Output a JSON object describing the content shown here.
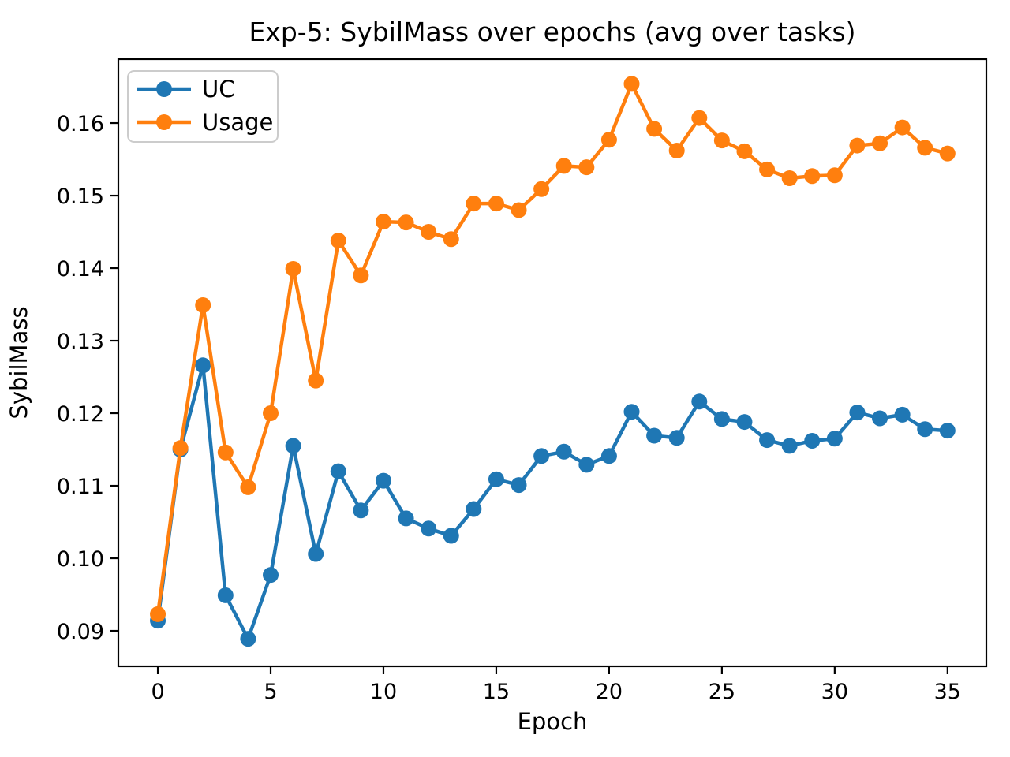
{
  "chart_data": {
    "type": "line",
    "title": "Exp-5: SybilMass over epochs (avg over tasks)",
    "xlabel": "Epoch",
    "ylabel": "SybilMass",
    "x": [
      0,
      1,
      2,
      3,
      4,
      5,
      6,
      7,
      8,
      9,
      10,
      11,
      12,
      13,
      14,
      15,
      16,
      17,
      18,
      19,
      20,
      21,
      22,
      23,
      24,
      25,
      26,
      27,
      28,
      29,
      30,
      31,
      32,
      33,
      34,
      35
    ],
    "series": [
      {
        "name": "UC",
        "color": "#1f77b4",
        "values": [
          0.0914,
          0.115,
          0.1266,
          0.0949,
          0.0889,
          0.0977,
          0.1155,
          0.1006,
          0.112,
          0.1066,
          0.1107,
          0.1055,
          0.1041,
          0.1031,
          0.1068,
          0.1109,
          0.1101,
          0.1141,
          0.1147,
          0.1129,
          0.1141,
          0.1202,
          0.1169,
          0.1166,
          0.1216,
          0.1192,
          0.1188,
          0.1163,
          0.1155,
          0.1162,
          0.1165,
          0.1201,
          0.1193,
          0.1198,
          0.1178,
          0.1176
        ]
      },
      {
        "name": "Usage",
        "color": "#ff7f0e",
        "values": [
          0.0923,
          0.1152,
          0.1349,
          0.1146,
          0.1098,
          0.12,
          0.1399,
          0.1245,
          0.1438,
          0.139,
          0.1464,
          0.1463,
          0.145,
          0.144,
          0.1489,
          0.1489,
          0.148,
          0.1509,
          0.1541,
          0.1539,
          0.1577,
          0.1654,
          0.1592,
          0.1562,
          0.1607,
          0.1576,
          0.1561,
          0.1536,
          0.1524,
          0.1527,
          0.1528,
          0.1569,
          0.1572,
          0.1594,
          0.1566,
          0.1558
        ]
      }
    ],
    "xticks": [
      0,
      5,
      10,
      15,
      20,
      25,
      30,
      35
    ],
    "yticks": [
      "0.09",
      "0.10",
      "0.11",
      "0.12",
      "0.13",
      "0.14",
      "0.15",
      "0.16"
    ],
    "xlim": [
      -1.75,
      36.72
    ],
    "ylim": [
      0.08511,
      0.16881
    ],
    "grid": false,
    "marker": "circle",
    "legend": {
      "position": "upper left",
      "entries": [
        "UC",
        "Usage"
      ]
    },
    "axis_color": "#000000",
    "background": "#ffffff"
  }
}
